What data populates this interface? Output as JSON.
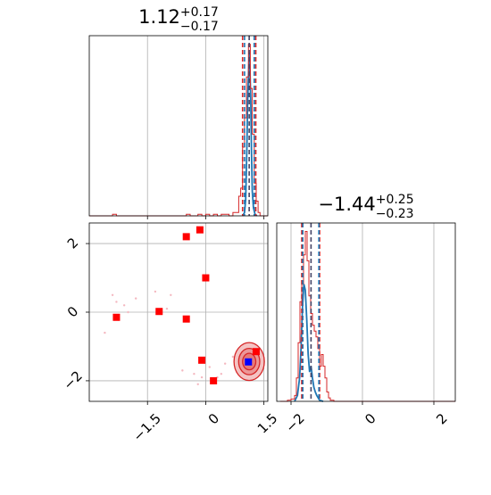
{
  "chart_data": [
    {
      "panel": "histogram-param-1",
      "type": "line",
      "title": "1.12",
      "title_sup": "+0.17",
      "title_sub": "−0.17",
      "xlim": [
        -3.0,
        1.6
      ],
      "xticks": [
        -1.5,
        0.0,
        1.5
      ],
      "grid": true,
      "series": [
        {
          "color": "#1f77b4",
          "x": [
            0.95,
            1.0,
            1.03,
            1.06,
            1.08,
            1.1,
            1.12,
            1.14,
            1.16,
            1.18,
            1.2,
            1.23,
            1.27,
            1.32
          ],
          "values": [
            0.0,
            0.02,
            0.1,
            0.4,
            0.7,
            0.85,
            1.0,
            0.9,
            0.7,
            0.4,
            0.15,
            0.05,
            0.01,
            0.0
          ]
        },
        {
          "color": "#d62728",
          "x": [
            -3.0,
            -2.5,
            -2.4,
            -2.3,
            -2.2,
            -1.0,
            -0.5,
            -0.4,
            -0.3,
            -0.2,
            -0.1,
            0.0,
            0.1,
            0.2,
            0.3,
            0.4,
            0.5,
            0.6,
            0.7,
            0.8,
            0.85,
            0.9,
            0.95,
            1.0,
            1.05,
            1.1,
            1.15,
            1.2,
            1.25,
            1.3,
            1.35,
            1.4,
            1.6
          ],
          "values": [
            0.0,
            0.0,
            0.01,
            0.0,
            0.0,
            0.0,
            0.01,
            0.0,
            0.0,
            0.01,
            0.0,
            0.01,
            0.0,
            0.01,
            0.0,
            0.01,
            0.01,
            0.0,
            0.02,
            0.02,
            0.12,
            0.17,
            0.42,
            0.6,
            0.85,
            1.05,
            0.78,
            0.5,
            0.2,
            0.09,
            0.02,
            0.0,
            0.0
          ]
        }
      ],
      "vlines": [
        {
          "color": "#d62728",
          "x": 0.95
        },
        {
          "color": "#d62728",
          "x": 1.29
        },
        {
          "color": "#1f77b4",
          "x": 1.0
        },
        {
          "color": "#1f77b4",
          "x": 1.25
        },
        {
          "color": "#444466",
          "x": 1.12
        }
      ]
    },
    {
      "panel": "histogram-param-2",
      "type": "line",
      "title": "−1.44",
      "title_sup": "+0.25",
      "title_sub": "−0.23",
      "xlim": [
        -2.4,
        2.6
      ],
      "xticks": [
        -2,
        0,
        2
      ],
      "xticklabels": [
        "−2",
        "0",
        "2"
      ],
      "grid": true,
      "series": [
        {
          "color": "#1f77b4",
          "x": [
            -1.9,
            -1.82,
            -1.76,
            -1.72,
            -1.68,
            -1.64,
            -1.6,
            -1.56,
            -1.52,
            -1.48,
            -1.44,
            -1.4,
            -1.36,
            -1.32,
            -1.28,
            -1.24,
            -1.2,
            -1.1
          ],
          "values": [
            0.0,
            0.05,
            0.2,
            0.45,
            0.8,
            1.0,
            0.95,
            0.7,
            0.4,
            0.25,
            0.3,
            0.2,
            0.12,
            0.08,
            0.05,
            0.03,
            0.01,
            0.0
          ]
        },
        {
          "color": "#d62728",
          "x": [
            -2.3,
            -2.1,
            -2.0,
            -1.9,
            -1.85,
            -1.8,
            -1.75,
            -1.7,
            -1.65,
            -1.6,
            -1.55,
            -1.5,
            -1.45,
            -1.4,
            -1.35,
            -1.3,
            -1.25,
            -1.2,
            -1.15,
            -1.1,
            -1.05,
            -1.0,
            -0.95,
            -0.9,
            -0.8,
            2.6
          ],
          "values": [
            0.0,
            0.01,
            0.02,
            0.05,
            0.2,
            0.5,
            0.85,
            1.0,
            1.25,
            1.45,
            1.2,
            0.9,
            0.75,
            0.65,
            0.6,
            0.55,
            0.45,
            0.3,
            0.4,
            0.3,
            0.2,
            0.08,
            0.03,
            0.01,
            0.0,
            0.0
          ]
        }
      ],
      "vlines": [
        {
          "color": "#d62728",
          "x": -1.7
        },
        {
          "color": "#d62728",
          "x": -1.2
        },
        {
          "color": "#1f77b4",
          "x": -1.67
        },
        {
          "color": "#1f77b4",
          "x": -1.22
        },
        {
          "color": "#444466",
          "x": -1.44
        }
      ]
    },
    {
      "panel": "scatter-2d",
      "type": "scatter",
      "xlim": [
        -3.0,
        1.6
      ],
      "ylim": [
        -2.6,
        2.6
      ],
      "xticks": [
        -1.5,
        0.0,
        1.5
      ],
      "yticks": [
        -2,
        0,
        2
      ],
      "yticklabels": [
        "−2",
        "0",
        "2"
      ],
      "grid": true,
      "series": [
        {
          "kind": "markers",
          "color": "#ff0000",
          "points": [
            [
              -2.3,
              -0.15
            ],
            [
              -1.2,
              0.02
            ],
            [
              -0.5,
              2.2
            ],
            [
              -0.15,
              2.4
            ],
            [
              0.0,
              1.0
            ],
            [
              -0.5,
              -0.2
            ],
            [
              -0.1,
              -1.4
            ],
            [
              0.2,
              -2.0
            ],
            [
              1.3,
              -1.15
            ]
          ]
        },
        {
          "kind": "truth",
          "color": "#0000ff",
          "points": [
            [
              1.1,
              -1.45
            ]
          ]
        },
        {
          "kind": "samples",
          "color": "#f4b8c0",
          "points": [
            [
              -2.4,
              0.5
            ],
            [
              -2.3,
              0.3
            ],
            [
              -2.1,
              0.2
            ],
            [
              -1.8,
              0.4
            ],
            [
              -1.3,
              0.6
            ],
            [
              -1.0,
              0.1
            ],
            [
              -0.9,
              0.5
            ],
            [
              -2.0,
              0.0
            ],
            [
              -2.6,
              -0.6
            ],
            [
              -0.6,
              -1.7
            ],
            [
              -0.3,
              -1.8
            ],
            [
              -0.1,
              -1.9
            ],
            [
              0.1,
              -1.6
            ],
            [
              0.4,
              -1.8
            ],
            [
              0.5,
              -1.5
            ],
            [
              0.7,
              -1.3
            ],
            [
              0.3,
              -1.9
            ],
            [
              -0.2,
              -2.1
            ]
          ]
        }
      ],
      "contours": {
        "center": [
          1.12,
          -1.44
        ],
        "sigma": [
          0.17,
          0.24
        ],
        "levels": [
          1.0,
          1.6,
          2.3
        ],
        "fill": "#d62728",
        "line": "#d62728"
      }
    }
  ]
}
